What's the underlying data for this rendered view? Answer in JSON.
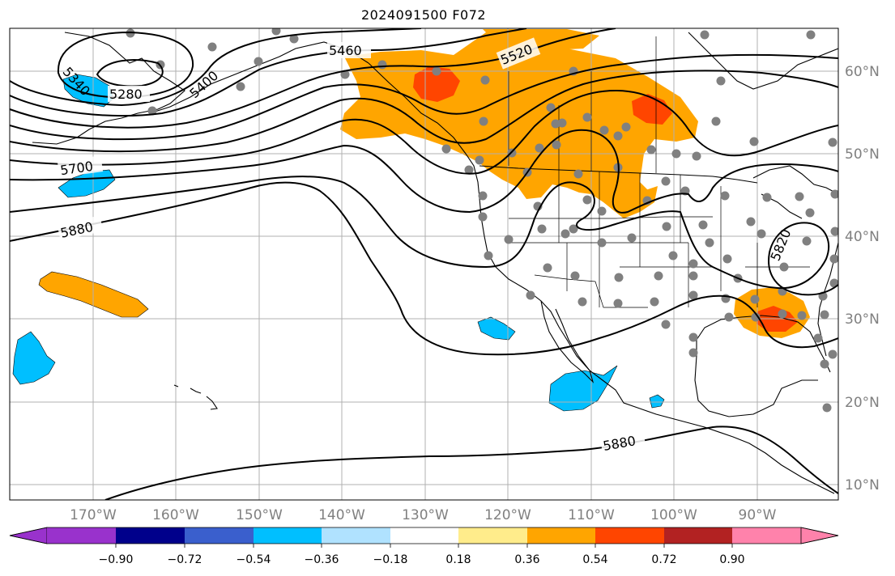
{
  "title": "2024091500 F072",
  "lon_labels": [
    "170°W",
    "160°W",
    "150°W",
    "140°W",
    "130°W",
    "120°W",
    "110°W",
    "100°W",
    "90°W"
  ],
  "lat_labels": [
    "60°N",
    "50°N",
    "40°N",
    "30°N",
    "20°N",
    "10°N"
  ],
  "contour_labels": [
    "5460",
    "5520",
    "5340",
    "5280",
    "5400",
    "5700",
    "5880",
    "5820",
    "5880"
  ],
  "colorbar": {
    "ticks": [
      "−0.90",
      "−0.72",
      "−0.54",
      "−0.36",
      "−0.18",
      "0.18",
      "0.36",
      "0.54",
      "0.72",
      "0.90"
    ],
    "colors": [
      "#9932cc",
      "#00008b",
      "#3a5fcd",
      "#00bfff",
      "#b0e2ff",
      "#ffffff",
      "#ffec8b",
      "#ffa500",
      "#ff4500",
      "#b22222",
      "#ff82ab"
    ]
  },
  "colors": {
    "land_outline": "#000000",
    "contour": "#000000",
    "grid": "#b0b0b0",
    "station_dot": "#808080",
    "positive_fill": "#ffa500",
    "strong_positive_fill": "#ff4500",
    "negative_fill": "#00bfff"
  }
}
